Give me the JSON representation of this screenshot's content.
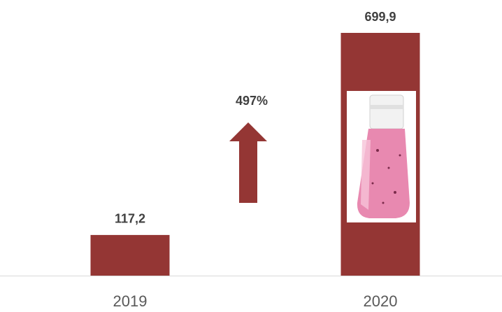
{
  "chart_data": {
    "type": "bar",
    "categories": [
      "2019",
      "2020"
    ],
    "values": [
      117.2,
      699.9
    ],
    "value_labels": [
      "117,2",
      "699,9"
    ],
    "color": "#943634",
    "annotation": "497%"
  }
}
